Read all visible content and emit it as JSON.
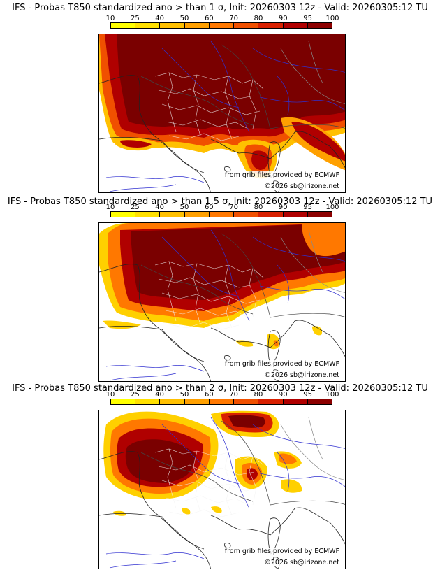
{
  "colorbar": {
    "ticks": [
      "10",
      "25",
      "40",
      "50",
      "60",
      "70",
      "80",
      "90",
      "95",
      "100"
    ],
    "colors": [
      "#ffff00",
      "#ffe000",
      "#ffc000",
      "#ffa000",
      "#ff7800",
      "#f05000",
      "#d82000",
      "#b00000",
      "#8c0000"
    ]
  },
  "panels": [
    {
      "title": "IFS - Probas T850  standardized ano > than 1 σ, Init: 20260303 12z - Valid: 20260305:12 TU",
      "source_credit": "from grib files provided by ECMWF",
      "copyright": "©2026 sb@irizone.net"
    },
    {
      "title": "IFS - Probas T850  standardized ano > than 1.5 σ, Init: 20260303 12z - Valid: 20260305:12 TU",
      "source_credit": "from grib files provided by ECMWF",
      "copyright": "©2026 sb@irizone.net"
    },
    {
      "title": "IFS - Probas T850  standardized ano > than 2 σ, Init: 20260303 12z - Valid: 20260305:12 TU",
      "source_credit": "from grib files provided by ECMWF",
      "copyright": "©2026 sb@irizone.net"
    }
  ]
}
